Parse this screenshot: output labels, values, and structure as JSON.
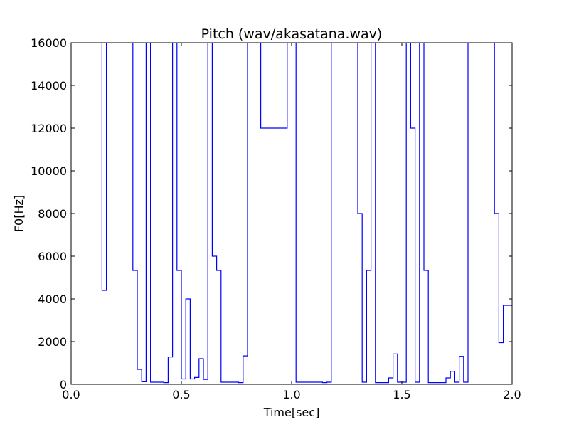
{
  "chart_data": {
    "type": "line",
    "title": "Pitch (wav/akasatana.wav)",
    "xlabel": "Time[sec]",
    "ylabel": "F0[Hz]",
    "xlim": [
      0.0,
      2.0
    ],
    "ylim": [
      0,
      16000
    ],
    "xticks": [
      0.0,
      0.5,
      1.0,
      1.5,
      2.0
    ],
    "xtick_labels": [
      "0.0",
      "0.5",
      "1.0",
      "1.5",
      "2.0"
    ],
    "yticks": [
      0,
      2000,
      4000,
      6000,
      8000,
      10000,
      12000,
      14000,
      16000
    ],
    "ytick_labels": [
      "0",
      "2000",
      "4000",
      "6000",
      "8000",
      "10000",
      "12000",
      "14000",
      "16000"
    ],
    "grid": false,
    "line_color": "#0000ff",
    "series": [
      {
        "step": "post",
        "x": [
          0.0,
          0.14,
          0.16,
          0.28,
          0.3,
          0.32,
          0.34,
          0.36,
          0.42,
          0.44,
          0.46,
          0.48,
          0.5,
          0.52,
          0.54,
          0.56,
          0.58,
          0.6,
          0.62,
          0.64,
          0.66,
          0.68,
          0.76,
          0.78,
          0.8,
          0.86,
          0.98,
          1.02,
          1.14,
          1.16,
          1.18,
          1.3,
          1.32,
          1.34,
          1.36,
          1.38,
          1.44,
          1.46,
          1.48,
          1.52,
          1.54,
          1.56,
          1.58,
          1.6,
          1.62,
          1.7,
          1.72,
          1.74,
          1.76,
          1.78,
          1.8,
          1.92,
          1.94,
          1.96,
          2.0
        ],
        "y": [
          16000,
          4400,
          16000,
          5333,
          700,
          120,
          16000,
          100,
          80,
          1280,
          16000,
          5333,
          250,
          4000,
          250,
          320,
          1200,
          230,
          16000,
          6000,
          5333,
          100,
          80,
          1330,
          16000,
          12000,
          16000,
          100,
          80,
          100,
          16000,
          8000,
          100,
          5333,
          16000,
          80,
          300,
          1420,
          100,
          16000,
          12000,
          100,
          16000,
          5333,
          80,
          300,
          610,
          100,
          1310,
          100,
          16000,
          8000,
          1950,
          3700,
          3700
        ]
      }
    ]
  }
}
